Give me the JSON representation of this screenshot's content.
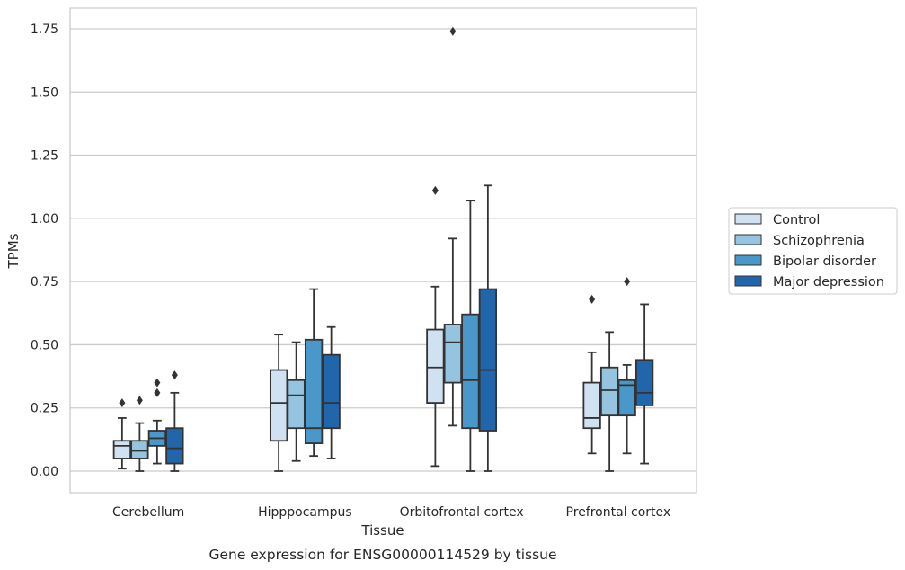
{
  "caption": "Gene expression for ENSG00000114529 by tissue",
  "chart_data": {
    "type": "box",
    "xlabel": "Tissue",
    "ylabel": "TPMs",
    "ylim": [
      -0.08,
      1.83
    ],
    "yticks": [
      0.0,
      0.25,
      0.5,
      0.75,
      1.0,
      1.25,
      1.5,
      1.75
    ],
    "ytick_labels": [
      "0.00",
      "0.25",
      "0.50",
      "0.75",
      "1.00",
      "1.25",
      "1.50",
      "1.75"
    ],
    "grid": "horizontal",
    "legend_position": "right",
    "categories": [
      "Cerebellum",
      "Hipppocampus",
      "Orbitofrontal cortex",
      "Prefrontal cortex"
    ],
    "series": [
      {
        "name": "Control",
        "color": "#d0e1f2",
        "boxes": [
          {
            "whislo": 0.01,
            "q1": 0.05,
            "med": 0.1,
            "q3": 0.12,
            "whishi": 0.21,
            "fliers": [
              0.27
            ]
          },
          {
            "whislo": 0.0,
            "q1": 0.12,
            "med": 0.27,
            "q3": 0.4,
            "whishi": 0.54,
            "fliers": []
          },
          {
            "whislo": 0.02,
            "q1": 0.27,
            "med": 0.41,
            "q3": 0.56,
            "whishi": 0.73,
            "fliers": [
              1.11
            ]
          },
          {
            "whislo": 0.07,
            "q1": 0.17,
            "med": 0.21,
            "q3": 0.35,
            "whishi": 0.47,
            "fliers": [
              0.68
            ]
          }
        ]
      },
      {
        "name": "Schizophrenia",
        "color": "#94c4df",
        "boxes": [
          {
            "whislo": 0.0,
            "q1": 0.05,
            "med": 0.08,
            "q3": 0.12,
            "whishi": 0.19,
            "fliers": [
              0.28
            ]
          },
          {
            "whislo": 0.04,
            "q1": 0.17,
            "med": 0.3,
            "q3": 0.36,
            "whishi": 0.51,
            "fliers": []
          },
          {
            "whislo": 0.18,
            "q1": 0.35,
            "med": 0.51,
            "q3": 0.58,
            "whishi": 0.92,
            "fliers": [
              1.74
            ]
          },
          {
            "whislo": 0.0,
            "q1": 0.22,
            "med": 0.32,
            "q3": 0.41,
            "whishi": 0.55,
            "fliers": []
          }
        ]
      },
      {
        "name": "Bipolar disorder",
        "color": "#4a98c9",
        "boxes": [
          {
            "whislo": 0.03,
            "q1": 0.1,
            "med": 0.13,
            "q3": 0.16,
            "whishi": 0.2,
            "fliers": [
              0.31,
              0.35
            ]
          },
          {
            "whislo": 0.06,
            "q1": 0.11,
            "med": 0.17,
            "q3": 0.52,
            "whishi": 0.72,
            "fliers": []
          },
          {
            "whislo": 0.0,
            "q1": 0.17,
            "med": 0.36,
            "q3": 0.62,
            "whishi": 1.07,
            "fliers": []
          },
          {
            "whislo": 0.07,
            "q1": 0.22,
            "med": 0.34,
            "q3": 0.36,
            "whishi": 0.42,
            "fliers": [
              0.75
            ]
          }
        ]
      },
      {
        "name": "Major depression",
        "color": "#2165ab",
        "boxes": [
          {
            "whislo": 0.0,
            "q1": 0.03,
            "med": 0.09,
            "q3": 0.17,
            "whishi": 0.31,
            "fliers": [
              0.38
            ]
          },
          {
            "whislo": 0.05,
            "q1": 0.17,
            "med": 0.27,
            "q3": 0.46,
            "whishi": 0.57,
            "fliers": []
          },
          {
            "whislo": 0.0,
            "q1": 0.16,
            "med": 0.4,
            "q3": 0.72,
            "whishi": 1.13,
            "fliers": []
          },
          {
            "whislo": 0.03,
            "q1": 0.26,
            "med": 0.31,
            "q3": 0.44,
            "whishi": 0.66,
            "fliers": []
          }
        ]
      }
    ]
  }
}
